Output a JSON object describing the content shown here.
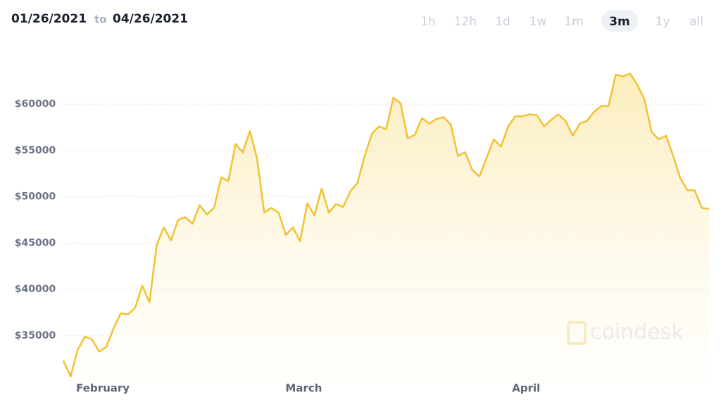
{
  "date_range": {
    "start": "01/26/2021",
    "separator": "to",
    "end": "04/26/2021"
  },
  "range_buttons": [
    {
      "label": "1h",
      "active": false
    },
    {
      "label": "12h",
      "active": false
    },
    {
      "label": "1d",
      "active": false
    },
    {
      "label": "1w",
      "active": false
    },
    {
      "label": "1m",
      "active": false
    },
    {
      "label": "3m",
      "active": true
    },
    {
      "label": "1y",
      "active": false
    },
    {
      "label": "all",
      "active": false
    }
  ],
  "watermark": "coindesk",
  "chart_data": {
    "type": "line",
    "color": "#f2c230",
    "area": true,
    "grid": true,
    "categories": [
      null,
      null,
      null,
      null,
      null,
      null,
      "February",
      null,
      null,
      null,
      null,
      null,
      null,
      null,
      null,
      null,
      null,
      null,
      null,
      null,
      null,
      null,
      null,
      null,
      null,
      null,
      null,
      null,
      null,
      null,
      null,
      null,
      null,
      null,
      "March",
      null,
      null,
      null,
      null,
      null,
      null,
      null,
      null,
      null,
      null,
      null,
      null,
      null,
      null,
      null,
      null,
      null,
      null,
      null,
      null,
      null,
      null,
      null,
      null,
      null,
      null,
      null,
      null,
      null,
      null,
      "April",
      null,
      null,
      null,
      null,
      null,
      null,
      null,
      null,
      null,
      null,
      null,
      null,
      null,
      null,
      null,
      null,
      null,
      null,
      null,
      null,
      null,
      null,
      null,
      null,
      null
    ],
    "values": [
      32300,
      30600,
      33500,
      34900,
      34600,
      33300,
      33800,
      35800,
      37400,
      37300,
      38000,
      40400,
      38600,
      44800,
      46700,
      45300,
      47500,
      47800,
      47100,
      49100,
      48100,
      48800,
      52100,
      51700,
      55700,
      54800,
      57100,
      54100,
      48300,
      48800,
      48300,
      45900,
      46700,
      45200,
      49300,
      48000,
      50900,
      48300,
      49200,
      48900,
      50600,
      51500,
      54400,
      56800,
      57600,
      57300,
      60700,
      60100,
      56300,
      56700,
      58500,
      57900,
      58400,
      58600,
      57800,
      54400,
      54800,
      52900,
      52200,
      54200,
      56200,
      55400,
      57600,
      58700,
      58700,
      58900,
      58800,
      57600,
      58300,
      58900,
      58200,
      56600,
      57900,
      58200,
      59200,
      59800,
      59800,
      63200,
      63000,
      63300,
      62100,
      60500,
      57000,
      56200,
      56600,
      54400,
      52000,
      50700,
      50700,
      48800,
      48700
    ],
    "ylim": [
      30000,
      65000
    ],
    "yticks": [
      {
        "value": 35000,
        "label": "$35000"
      },
      {
        "value": 40000,
        "label": "$40000"
      },
      {
        "value": 45000,
        "label": "$45000"
      },
      {
        "value": 50000,
        "label": "$50000"
      },
      {
        "value": 55000,
        "label": "$55000"
      },
      {
        "value": 60000,
        "label": "$60000"
      }
    ]
  }
}
